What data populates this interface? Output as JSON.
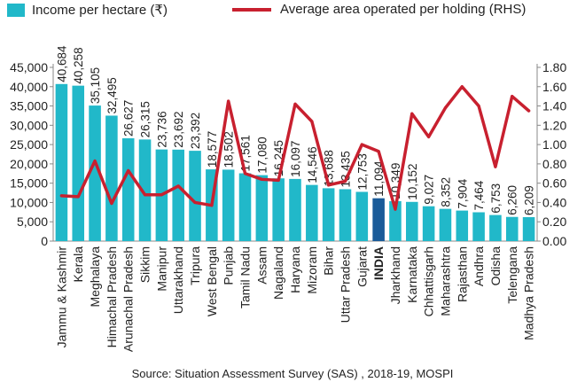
{
  "legend": {
    "bar_label": "Income per hectare (₹)",
    "line_label": "Average area operated per holding (RHS)"
  },
  "source": "Source: Situation Assessment Survey (SAS) , 2018-19, MOSPI",
  "colors": {
    "bar": "#21b8c9",
    "bar_highlight": "#1a5b99",
    "line": "#c8202f",
    "axis": "#888888",
    "text": "#222222"
  },
  "chart_data": {
    "type": "bar",
    "highlight_category": "INDIA",
    "categories": [
      "Jammu & Kashmir",
      "Kerala",
      "Meghalaya",
      "Himachal Pradesh",
      "Arunachal Pradesh",
      "Sikkim",
      "Manipur",
      "Uttarakhand",
      "Tripura",
      "West Bengal",
      "Punjab",
      "Tamil Nadu",
      "Assam",
      "Nagaland",
      "Haryana",
      "Mizoram",
      "Bihar",
      "Uttar Pradesh",
      "Gujarat",
      "INDIA",
      "Jharkhand",
      "Karnataka",
      "Chhattisgarh",
      "Maharashtra",
      "Rajasthan",
      "Andhra",
      "Odisha",
      "Telengana",
      "Madhya Pradesh"
    ],
    "series": [
      {
        "name": "Income per hectare (₹)",
        "type": "bar",
        "axis": "left",
        "values": [
          40684,
          40258,
          35105,
          32495,
          26627,
          26315,
          23736,
          23692,
          23392,
          18577,
          18502,
          17561,
          17080,
          16245,
          16097,
          14546,
          13688,
          13435,
          12753,
          11094,
          10349,
          10152,
          9027,
          8352,
          7904,
          7464,
          6753,
          6260,
          6209
        ],
        "labels": [
          "40,684",
          "40,258",
          "35,105",
          "32,495",
          "26,627",
          "26,315",
          "23,736",
          "23,692",
          "23,392",
          "18,577",
          "18,502",
          "17,561",
          "17,080",
          "16,245",
          "16,097",
          "14,546",
          "13,688",
          "13,435",
          "12,753",
          "11,094",
          "10,349",
          "10,152",
          "9,027",
          "8,352",
          "7,904",
          "7,464",
          "6,753",
          "6,260",
          "6,209"
        ]
      },
      {
        "name": "Average area operated per holding (RHS)",
        "type": "line",
        "axis": "right",
        "values": [
          0.47,
          0.46,
          0.83,
          0.39,
          0.73,
          0.48,
          0.48,
          0.57,
          0.4,
          0.37,
          1.45,
          0.7,
          0.64,
          0.63,
          1.42,
          1.24,
          0.58,
          0.62,
          1.0,
          0.93,
          0.33,
          1.32,
          1.08,
          1.38,
          1.6,
          1.4,
          0.77,
          1.5,
          1.35
        ]
      }
    ],
    "left_axis": {
      "ylim": [
        0,
        45000
      ],
      "ticks": [
        0,
        5000,
        10000,
        15000,
        20000,
        25000,
        30000,
        35000,
        40000,
        45000
      ],
      "tick_labels": [
        "0",
        "5,000",
        "10,000",
        "15,000",
        "20,000",
        "25,000",
        "30,000",
        "35,000",
        "40,000",
        "45,000"
      ]
    },
    "right_axis": {
      "ylim": [
        0,
        1.8
      ],
      "ticks": [
        0,
        0.2,
        0.4,
        0.6,
        0.8,
        1.0,
        1.2,
        1.4,
        1.6,
        1.8
      ],
      "tick_labels": [
        "0.00",
        "0.20",
        "0.40",
        "0.60",
        "0.80",
        "1.00",
        "1.20",
        "1.40",
        "1.60",
        "1.80"
      ]
    },
    "grid": false,
    "legend_position": "top"
  }
}
